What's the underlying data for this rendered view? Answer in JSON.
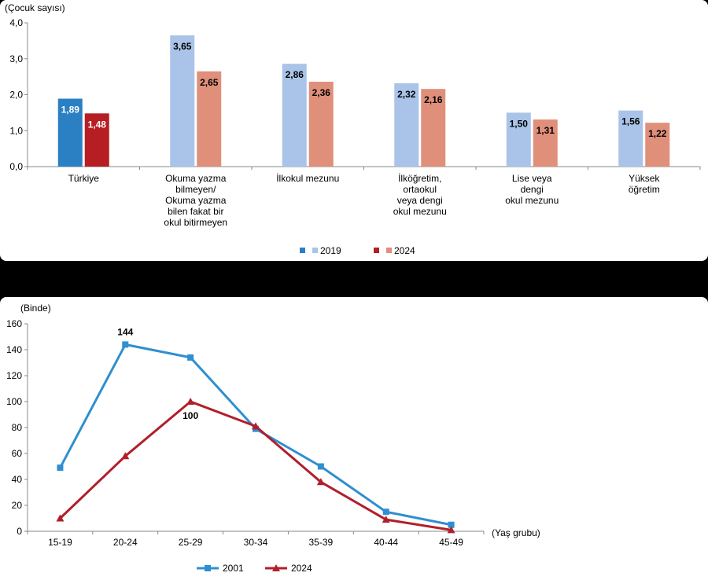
{
  "chart_data": [
    {
      "type": "bar",
      "ylabel": "(Çocuk sayısı)",
      "ylim": [
        0,
        4
      ],
      "yticks": [
        "0,0",
        "1,0",
        "2,0",
        "3,0",
        "4,0"
      ],
      "grid": false,
      "legend": "bottom-center",
      "categories": [
        [
          "Türkiye"
        ],
        [
          "Okuma yazma",
          "bilmeyen/",
          "Okuma yazma",
          "bilen fakat bir",
          "okul bitirmeyen"
        ],
        [
          "İlkokul mezunu"
        ],
        [
          "İlköğretim,",
          "ortaokul",
          "veya dengi",
          "okul mezunu"
        ],
        [
          "Lise veya",
          "dengi",
          "okul mezunu"
        ],
        [
          "Yüksek",
          "öğretim"
        ]
      ],
      "series": [
        {
          "name": "2019",
          "values": [
            1.89,
            3.65,
            2.86,
            2.32,
            1.5,
            1.56
          ],
          "labels": [
            "1,89",
            "3,65",
            "2,86",
            "2,32",
            "1,50",
            "1,56"
          ],
          "color": "#a9c4e8",
          "highlight_color": "#2b7fc3",
          "legend_marker": "#2b7fc3"
        },
        {
          "name": "2024",
          "values": [
            1.48,
            2.65,
            2.36,
            2.16,
            1.31,
            1.22
          ],
          "labels": [
            "1,48",
            "2,65",
            "2,36",
            "2,16",
            "1,31",
            "1,22"
          ],
          "color": "#e08f7b",
          "highlight_color": "#b61e24",
          "legend_marker": "#b61e24"
        }
      ]
    },
    {
      "type": "line",
      "ylabel": "(Binde)",
      "xlabel": "(Yaş grubu)",
      "ylim": [
        0,
        160
      ],
      "yticks": [
        "0",
        "20",
        "40",
        "60",
        "80",
        "100",
        "120",
        "140",
        "160"
      ],
      "grid": false,
      "legend": "bottom-center",
      "categories": [
        "15-19",
        "20-24",
        "25-29",
        "30-34",
        "35-39",
        "40-44",
        "45-49"
      ],
      "series": [
        {
          "name": "2001",
          "values": [
            49,
            144,
            134,
            79,
            50,
            15,
            5
          ],
          "marker": "square",
          "color": "#2f8fd0",
          "annotations": [
            {
              "index": 1,
              "text": "144",
              "position": "above"
            }
          ]
        },
        {
          "name": "2024",
          "values": [
            10,
            58,
            100,
            81,
            38,
            9,
            1
          ],
          "marker": "triangle",
          "color": "#b11f2a",
          "annotations": [
            {
              "index": 2,
              "text": "100",
              "position": "below"
            }
          ]
        }
      ]
    }
  ]
}
